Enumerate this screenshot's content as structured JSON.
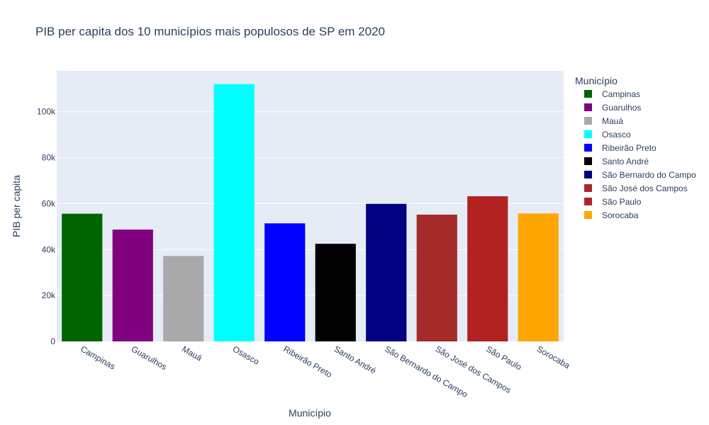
{
  "chart_data": {
    "type": "bar",
    "title": "PIB per capita dos 10 municípios mais populosos de SP em 2020",
    "xlabel": "Município",
    "ylabel": "PIB per capita",
    "legend_title": "Município",
    "legend_position": "right",
    "grid": true,
    "ylim": [
      0,
      117800
    ],
    "yticks": [
      0,
      20000,
      40000,
      60000,
      80000,
      100000
    ],
    "ytick_labels": [
      "0",
      "20k",
      "40k",
      "60k",
      "80k",
      "100k"
    ],
    "categories": [
      "Campinas",
      "Guarulhos",
      "Mauá",
      "Osasco",
      "Ribeirão Preto",
      "Santo André",
      "São Bernardo do Campo",
      "São José dos Campos",
      "São Paulo",
      "Sorocaba"
    ],
    "values": [
      55600,
      48700,
      37200,
      112000,
      51400,
      42500,
      59900,
      55200,
      63200,
      55700
    ],
    "colors": [
      "#006400",
      "#800080",
      "#a9a9a9",
      "#00ffff",
      "#0000ff",
      "#000000",
      "#000080",
      "#a52a2a",
      "#b22222",
      "#ffa500"
    ],
    "plot_background": "#e5ecf6"
  }
}
